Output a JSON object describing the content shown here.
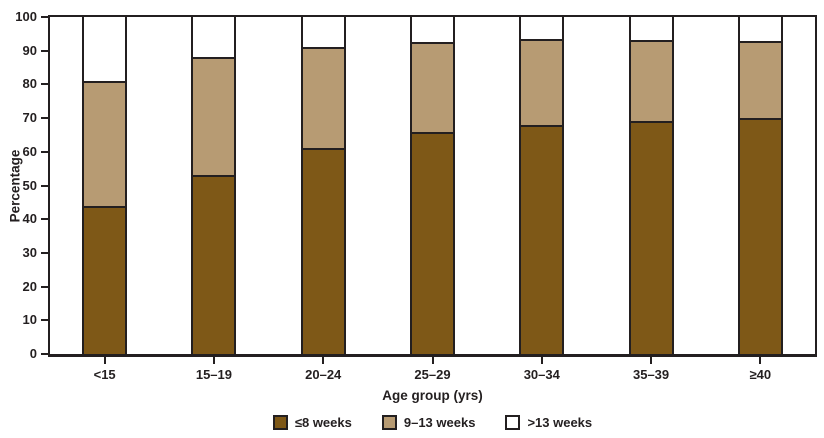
{
  "figure": {
    "background": "#ffffff",
    "frame_color": "#231f20",
    "text_color": "#231f20"
  },
  "chart_data": {
    "type": "bar",
    "stacked": true,
    "categories": [
      "<15",
      "15–19",
      "20–24",
      "25–29",
      "30–34",
      "35–39",
      "≥40"
    ],
    "series": [
      {
        "name": "≤8 weeks",
        "color": "#7e5817",
        "values": [
          44,
          53,
          61,
          66,
          68,
          69,
          70
        ]
      },
      {
        "name": "9–13 weeks",
        "color": "#b79b73",
        "values": [
          37,
          35,
          30,
          26.7,
          25.4,
          24.1,
          22.8
        ]
      },
      {
        "name": ">13 weeks",
        "color": "#ffffff",
        "values": [
          19,
          12,
          9,
          7.3,
          6.6,
          6.9,
          7.2
        ]
      }
    ],
    "xlabel": "Age group (yrs)",
    "ylabel": "Percentage",
    "ylim": [
      0,
      100
    ],
    "yticks": [
      0,
      10,
      20,
      30,
      40,
      50,
      60,
      70,
      80,
      90,
      100
    ],
    "grid": false,
    "legend_position": "bottom"
  }
}
